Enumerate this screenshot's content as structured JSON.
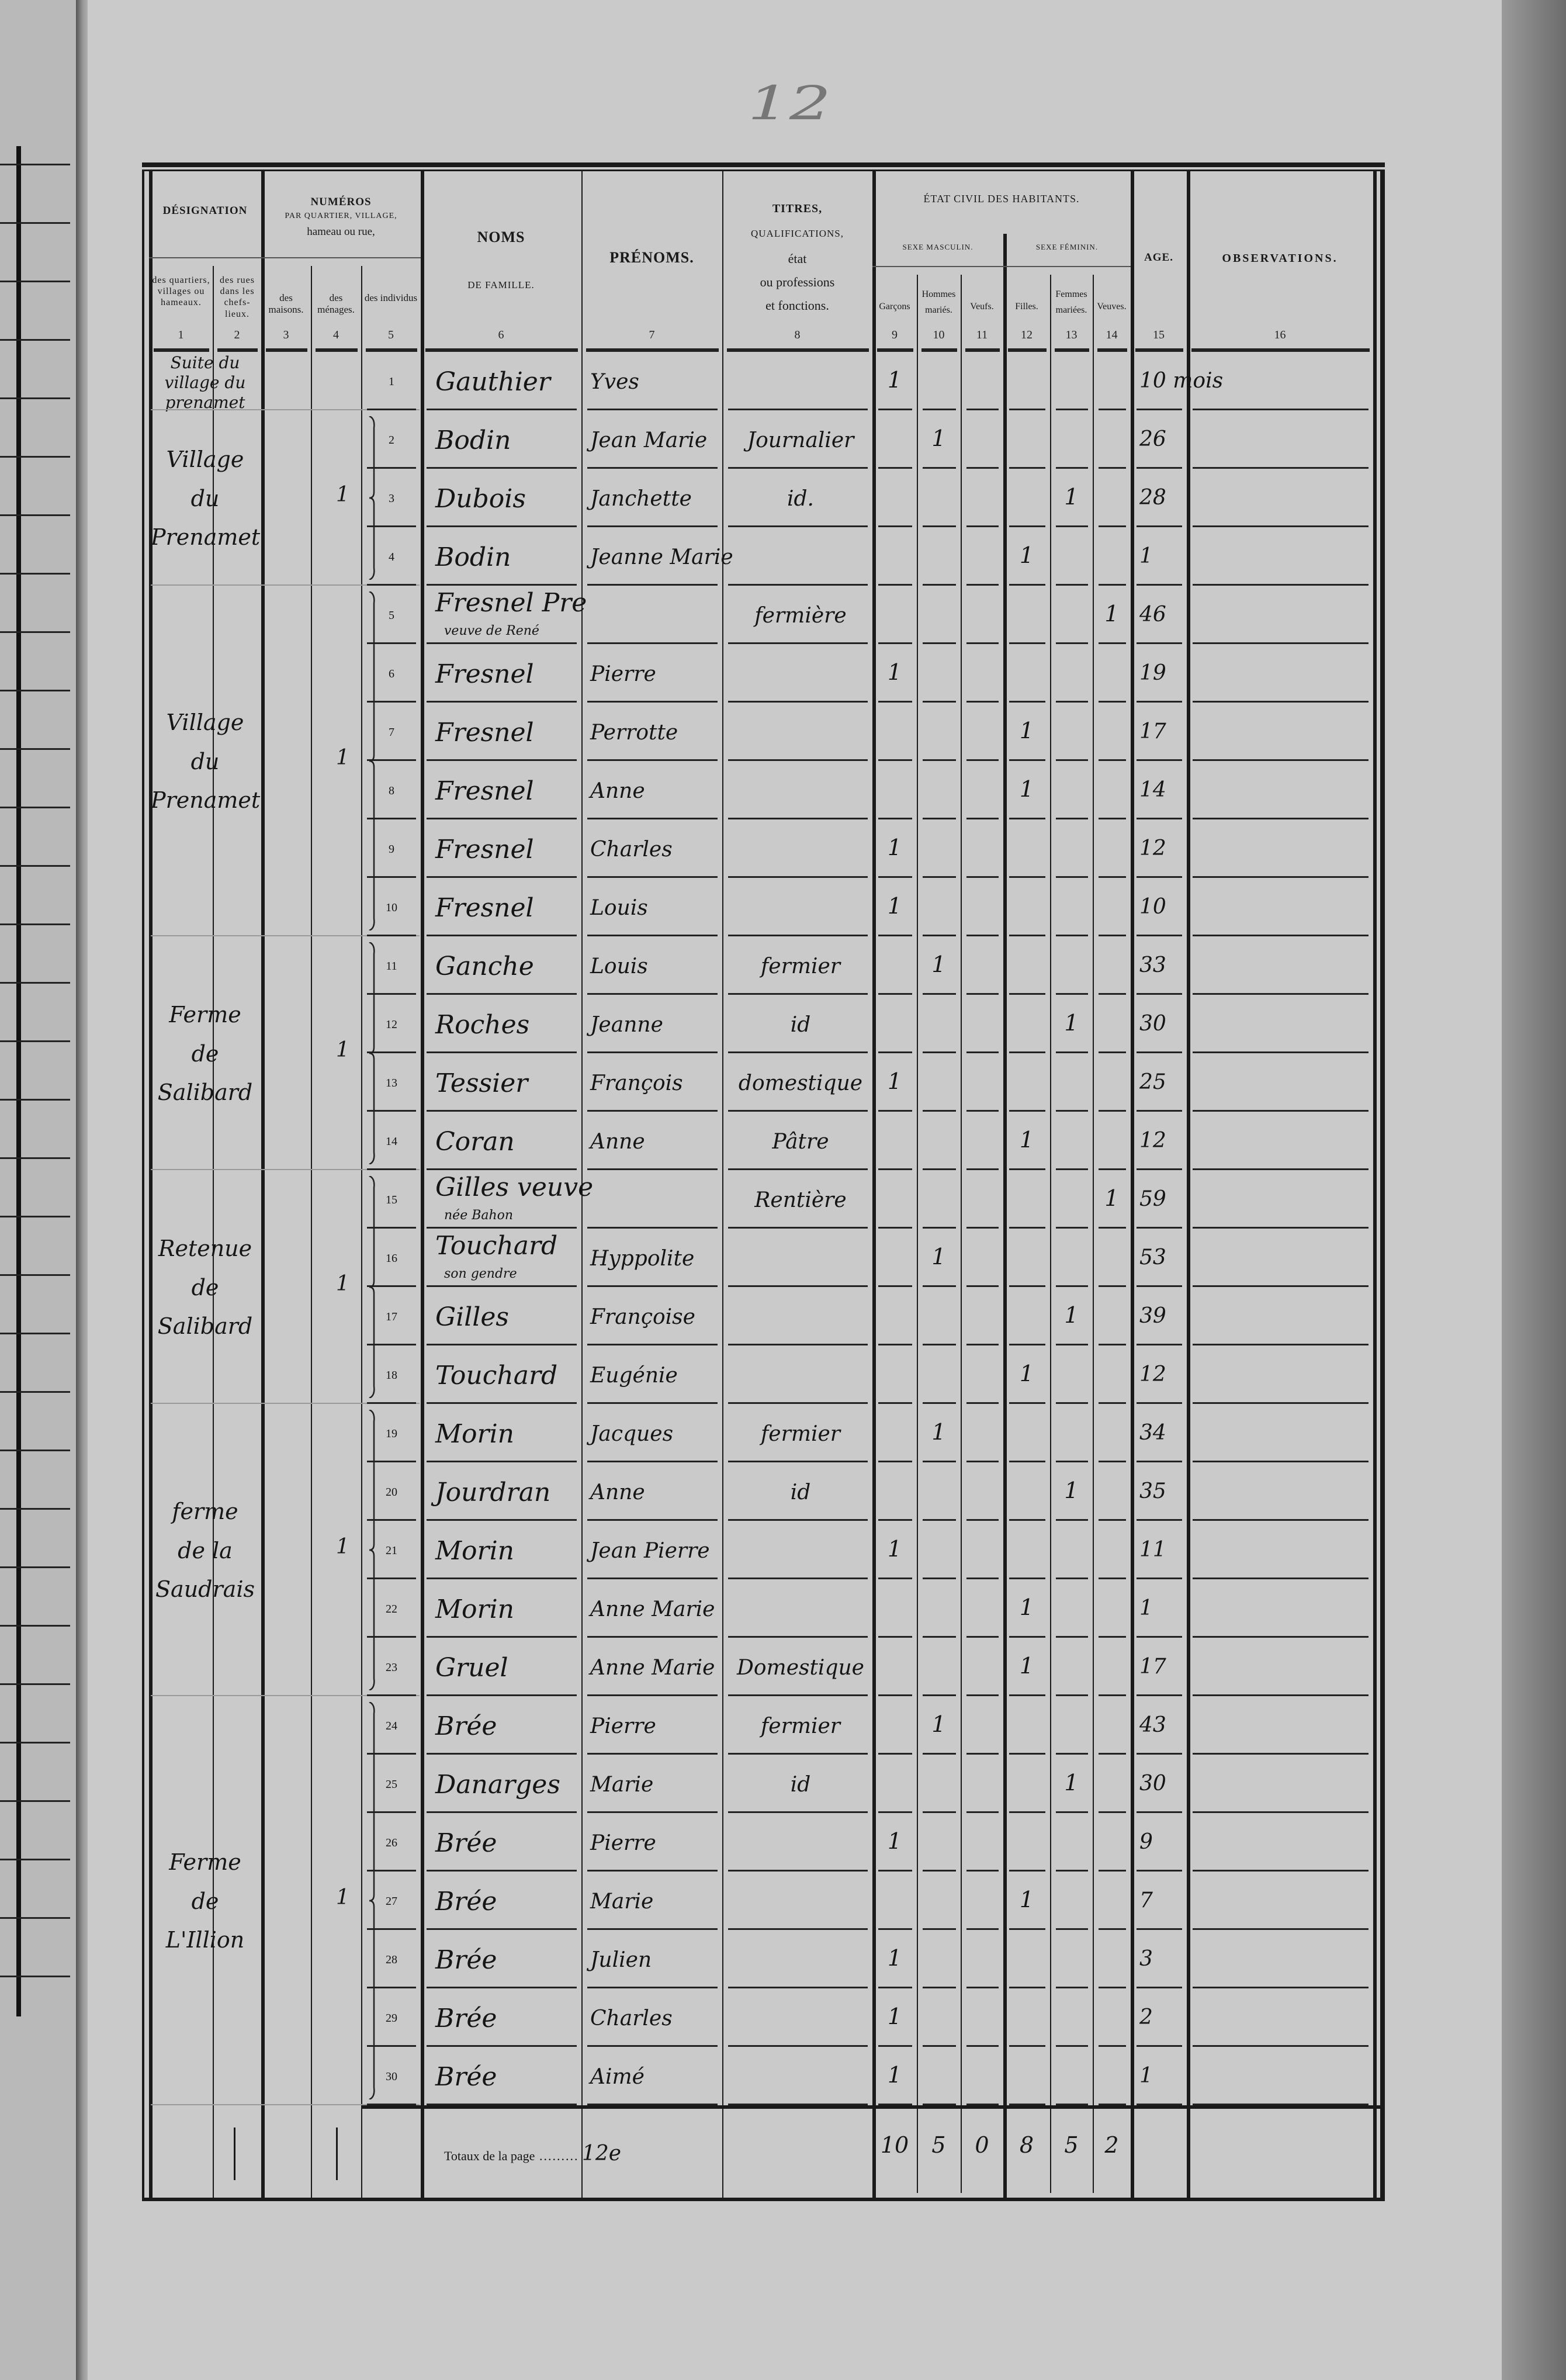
{
  "page_number": "12",
  "header": {
    "designation": "DÉSIGNATION",
    "designation_sub": [
      "des quartiers, villages ou hameaux.",
      "des rues dans les chefs-lieux."
    ],
    "numeros": "NUMÉROS",
    "numeros_line2": "PAR QUARTIER, VILLAGE,",
    "numeros_line3": "hameau ou rue,",
    "numeros_sub": [
      "des maisons.",
      "des ménages.",
      "des individus"
    ],
    "noms": "NOMS",
    "noms_sub": "DE FAMILLE.",
    "prenoms": "PRÉNOMS.",
    "titres": "TITRES,",
    "titres_line2": "QUALIFICATIONS,",
    "titres_line3": "état",
    "titres_line4": "ou professions",
    "titres_line5": "et fonctions.",
    "etat_civil": "ÉTAT CIVIL DES HABITANTS.",
    "sexe_masculin": "SEXE MASCULIN.",
    "sexe_feminin": "SEXE FÉMININ.",
    "masculin_cols": [
      "Garçons",
      "Hommes mariés.",
      "Veufs."
    ],
    "feminin_cols": [
      "Filles.",
      "Femmes mariées.",
      "Veuves."
    ],
    "age": "AGE.",
    "observations": "OBSERVATIONS.",
    "column_numbers": [
      "1",
      "2",
      "3",
      "4",
      "5",
      "6",
      "7",
      "8",
      "9",
      "10",
      "11",
      "12",
      "13",
      "14",
      "15",
      "16"
    ]
  },
  "groups": [
    {
      "location": [
        "Suite du",
        "village du",
        "prenamet"
      ],
      "menages": ""
    },
    {
      "location": [
        "Village",
        "du",
        "Prenamet"
      ],
      "menages": "1"
    },
    {
      "location": [
        "Village",
        "du",
        "Prenamet"
      ],
      "menages": "1"
    },
    {
      "location": [
        "Ferme",
        "de",
        "Salibard"
      ],
      "menages": "1"
    },
    {
      "location": [
        "Retenue",
        "de",
        "Salibard"
      ],
      "menages": "1"
    },
    {
      "location": [
        "ferme",
        "de la",
        "Saudrais"
      ],
      "menages": "1"
    },
    {
      "location": [
        "Ferme",
        "de",
        "L'Illion"
      ],
      "menages": "1"
    }
  ],
  "rows": [
    {
      "n": "1",
      "nom": "Gauthier",
      "nom_note": "",
      "prenom": "Yves",
      "titre": "",
      "garcons": "1",
      "hommes_maries": "",
      "veufs": "",
      "filles": "",
      "femmes_mariees": "",
      "veuves": "",
      "age": "10 mois"
    },
    {
      "n": "2",
      "nom": "Bodin",
      "nom_note": "",
      "prenom": "Jean Marie",
      "titre": "Journalier",
      "garcons": "",
      "hommes_maries": "1",
      "veufs": "",
      "filles": "",
      "femmes_mariees": "",
      "veuves": "",
      "age": "26"
    },
    {
      "n": "3",
      "nom": "Dubois",
      "nom_note": "",
      "prenom": "Janchette",
      "titre": "id.",
      "garcons": "",
      "hommes_maries": "",
      "veufs": "",
      "filles": "",
      "femmes_mariees": "1",
      "veuves": "",
      "age": "28"
    },
    {
      "n": "4",
      "nom": "Bodin",
      "nom_note": "",
      "prenom": "Jeanne Marie",
      "titre": "",
      "garcons": "",
      "hommes_maries": "",
      "veufs": "",
      "filles": "1",
      "femmes_mariees": "",
      "veuves": "",
      "age": "1"
    },
    {
      "n": "5",
      "nom": "Fresnel Pre",
      "nom_note": "veuve de René",
      "prenom": "",
      "titre": "fermière",
      "garcons": "",
      "hommes_maries": "",
      "veufs": "",
      "filles": "",
      "femmes_mariees": "",
      "veuves": "1",
      "age": "46"
    },
    {
      "n": "6",
      "nom": "Fresnel",
      "nom_note": "",
      "prenom": "Pierre",
      "titre": "",
      "garcons": "1",
      "hommes_maries": "",
      "veufs": "",
      "filles": "",
      "femmes_mariees": "",
      "veuves": "",
      "age": "19"
    },
    {
      "n": "7",
      "nom": "Fresnel",
      "nom_note": "",
      "prenom": "Perrotte",
      "titre": "",
      "garcons": "",
      "hommes_maries": "",
      "veufs": "",
      "filles": "1",
      "femmes_mariees": "",
      "veuves": "",
      "age": "17"
    },
    {
      "n": "8",
      "nom": "Fresnel",
      "nom_note": "",
      "prenom": "Anne",
      "titre": "",
      "garcons": "",
      "hommes_maries": "",
      "veufs": "",
      "filles": "1",
      "femmes_mariees": "",
      "veuves": "",
      "age": "14"
    },
    {
      "n": "9",
      "nom": "Fresnel",
      "nom_note": "",
      "prenom": "Charles",
      "titre": "",
      "garcons": "1",
      "hommes_maries": "",
      "veufs": "",
      "filles": "",
      "femmes_mariees": "",
      "veuves": "",
      "age": "12"
    },
    {
      "n": "10",
      "nom": "Fresnel",
      "nom_note": "",
      "prenom": "Louis",
      "titre": "",
      "garcons": "1",
      "hommes_maries": "",
      "veufs": "",
      "filles": "",
      "femmes_mariees": "",
      "veuves": "",
      "age": "10"
    },
    {
      "n": "11",
      "nom": "Ganche",
      "nom_note": "",
      "prenom": "Louis",
      "titre": "fermier",
      "garcons": "",
      "hommes_maries": "1",
      "veufs": "",
      "filles": "",
      "femmes_mariees": "",
      "veuves": "",
      "age": "33"
    },
    {
      "n": "12",
      "nom": "Roches",
      "nom_note": "",
      "prenom": "Jeanne",
      "titre": "id",
      "garcons": "",
      "hommes_maries": "",
      "veufs": "",
      "filles": "",
      "femmes_mariees": "1",
      "veuves": "",
      "age": "30"
    },
    {
      "n": "13",
      "nom": "Tessier",
      "nom_note": "",
      "prenom": "François",
      "titre": "domestique",
      "garcons": "1",
      "hommes_maries": "",
      "veufs": "",
      "filles": "",
      "femmes_mariees": "",
      "veuves": "",
      "age": "25"
    },
    {
      "n": "14",
      "nom": "Coran",
      "nom_note": "",
      "prenom": "Anne",
      "titre": "Pâtre",
      "garcons": "",
      "hommes_maries": "",
      "veufs": "",
      "filles": "1",
      "femmes_mariees": "",
      "veuves": "",
      "age": "12"
    },
    {
      "n": "15",
      "nom": "Gilles veuve",
      "nom_note": "née Bahon",
      "prenom": "",
      "titre": "Rentière",
      "garcons": "",
      "hommes_maries": "",
      "veufs": "",
      "filles": "",
      "femmes_mariees": "",
      "veuves": "1",
      "age": "59"
    },
    {
      "n": "16",
      "nom": "Touchard",
      "nom_note": "son gendre",
      "prenom": "Hyppolite",
      "titre": "",
      "garcons": "",
      "hommes_maries": "1",
      "veufs": "",
      "filles": "",
      "femmes_mariees": "",
      "veuves": "",
      "age": "53"
    },
    {
      "n": "17",
      "nom": "Gilles",
      "nom_note": "",
      "prenom": "Françoise",
      "titre": "",
      "garcons": "",
      "hommes_maries": "",
      "veufs": "",
      "filles": "",
      "femmes_mariees": "1",
      "veuves": "",
      "age": "39"
    },
    {
      "n": "18",
      "nom": "Touchard",
      "nom_note": "",
      "prenom": "Eugénie",
      "titre": "",
      "garcons": "",
      "hommes_maries": "",
      "veufs": "",
      "filles": "1",
      "femmes_mariees": "",
      "veuves": "",
      "age": "12"
    },
    {
      "n": "19",
      "nom": "Morin",
      "nom_note": "",
      "prenom": "Jacques",
      "titre": "fermier",
      "garcons": "",
      "hommes_maries": "1",
      "veufs": "",
      "filles": "",
      "femmes_mariees": "",
      "veuves": "",
      "age": "34"
    },
    {
      "n": "20",
      "nom": "Jourdran",
      "nom_note": "",
      "prenom": "Anne",
      "titre": "id",
      "garcons": "",
      "hommes_maries": "",
      "veufs": "",
      "filles": "",
      "femmes_mariees": "1",
      "veuves": "",
      "age": "35"
    },
    {
      "n": "21",
      "nom": "Morin",
      "nom_note": "",
      "prenom": "Jean Pierre",
      "titre": "",
      "garcons": "1",
      "hommes_maries": "",
      "veufs": "",
      "filles": "",
      "femmes_mariees": "",
      "veuves": "",
      "age": "11"
    },
    {
      "n": "22",
      "nom": "Morin",
      "nom_note": "",
      "prenom": "Anne Marie",
      "titre": "",
      "garcons": "",
      "hommes_maries": "",
      "veufs": "",
      "filles": "1",
      "femmes_mariees": "",
      "veuves": "",
      "age": "1"
    },
    {
      "n": "23",
      "nom": "Gruel",
      "nom_note": "",
      "prenom": "Anne Marie",
      "titre": "Domestique",
      "garcons": "",
      "hommes_maries": "",
      "veufs": "",
      "filles": "1",
      "femmes_mariees": "",
      "veuves": "",
      "age": "17"
    },
    {
      "n": "24",
      "nom": "Brée",
      "nom_note": "",
      "prenom": "Pierre",
      "titre": "fermier",
      "garcons": "",
      "hommes_maries": "1",
      "veufs": "",
      "filles": "",
      "femmes_mariees": "",
      "veuves": "",
      "age": "43"
    },
    {
      "n": "25",
      "nom": "Danarges",
      "nom_note": "",
      "prenom": "Marie",
      "titre": "id",
      "garcons": "",
      "hommes_maries": "",
      "veufs": "",
      "filles": "",
      "femmes_mariees": "1",
      "veuves": "",
      "age": "30"
    },
    {
      "n": "26",
      "nom": "Brée",
      "nom_note": "",
      "prenom": "Pierre",
      "titre": "",
      "garcons": "1",
      "hommes_maries": "",
      "veufs": "",
      "filles": "",
      "femmes_mariees": "",
      "veuves": "",
      "age": "9"
    },
    {
      "n": "27",
      "nom": "Brée",
      "nom_note": "",
      "prenom": "Marie",
      "titre": "",
      "garcons": "",
      "hommes_maries": "",
      "veufs": "",
      "filles": "1",
      "femmes_mariees": "",
      "veuves": "",
      "age": "7"
    },
    {
      "n": "28",
      "nom": "Brée",
      "nom_note": "",
      "prenom": "Julien",
      "titre": "",
      "garcons": "1",
      "hommes_maries": "",
      "veufs": "",
      "filles": "",
      "femmes_mariees": "",
      "veuves": "",
      "age": "3"
    },
    {
      "n": "29",
      "nom": "Brée",
      "nom_note": "",
      "prenom": "Charles",
      "titre": "",
      "garcons": "1",
      "hommes_maries": "",
      "veufs": "",
      "filles": "",
      "femmes_mariees": "",
      "veuves": "",
      "age": "2"
    },
    {
      "n": "30",
      "nom": "Brée",
      "nom_note": "",
      "prenom": "Aimé",
      "titre": "",
      "garcons": "1",
      "hommes_maries": "",
      "veufs": "",
      "filles": "",
      "femmes_mariees": "",
      "veuves": "",
      "age": "1"
    }
  ],
  "totals": {
    "label": "Totaux de la page",
    "page_ref": "12e",
    "garcons": "10",
    "hommes_maries": "5",
    "veufs": "0",
    "filles": "8",
    "femmes_mariees": "5",
    "veuves": "2"
  }
}
